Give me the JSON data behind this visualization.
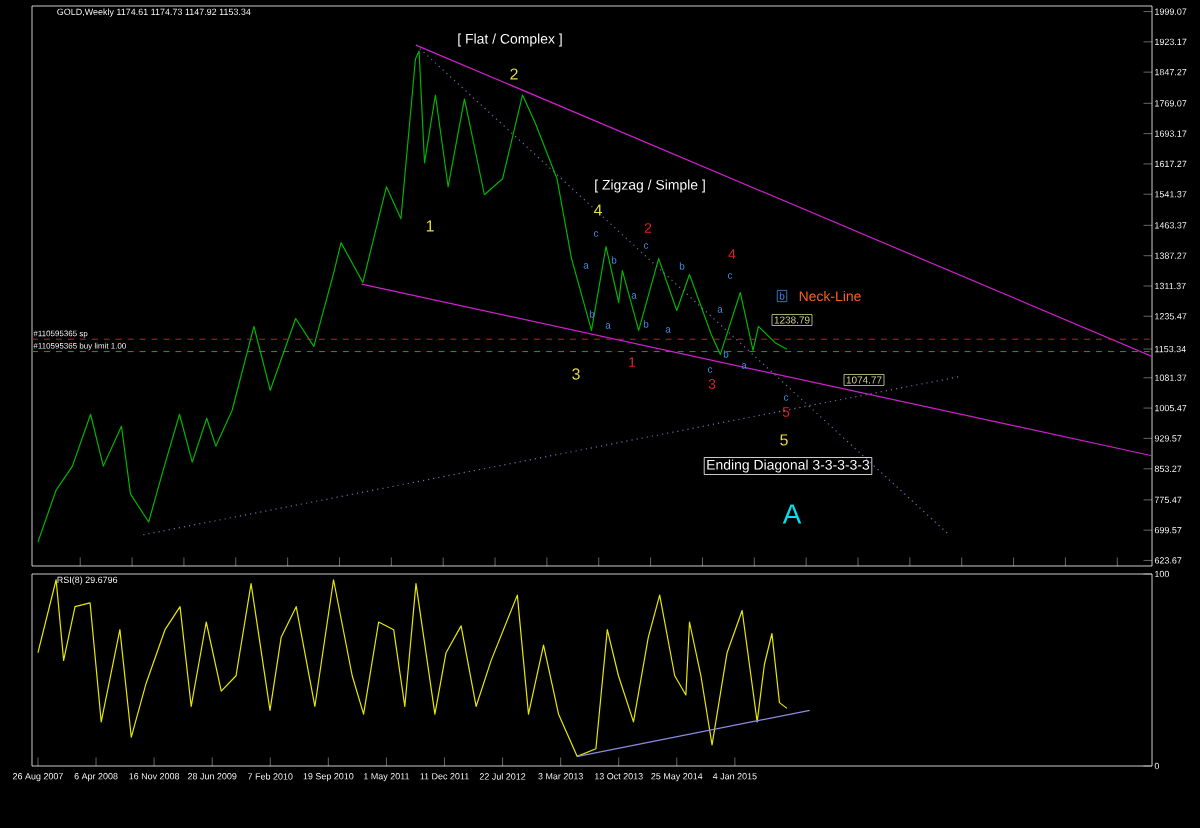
{
  "chart_data": [
    {
      "type": "line",
      "title": "GOLD,Weekly  1174.61 1174.73 1147.92 1153.34",
      "xlim": [
        "2007-08-03",
        "2019-06-01"
      ],
      "ylim": [
        609.73,
        2013.0
      ],
      "yticks": [
        {
          "value": 1999.07,
          "label": "1999.07"
        },
        {
          "value": 1923.17,
          "label": "1923.17"
        },
        {
          "value": 1847.27,
          "label": "1847.27"
        },
        {
          "value": 1769.07,
          "label": "1769.07"
        },
        {
          "value": 1693.17,
          "label": "1693.17"
        },
        {
          "value": 1617.27,
          "label": "1617.27"
        },
        {
          "value": 1541.37,
          "label": "1541.37"
        },
        {
          "value": 1463.37,
          "label": "1463.37"
        },
        {
          "value": 1387.27,
          "label": "1387.27"
        },
        {
          "value": 1311.37,
          "label": "1311.37"
        },
        {
          "value": 1235.47,
          "label": "1235.47"
        },
        {
          "value": 1153.34,
          "label": "1153.34"
        },
        {
          "value": 1081.37,
          "label": "1081.37"
        },
        {
          "value": 1005.47,
          "label": "1005.47"
        },
        {
          "value": 929.57,
          "label": "929.57"
        },
        {
          "value": 853.27,
          "label": "853.27"
        },
        {
          "value": 775.47,
          "label": "775.47"
        },
        {
          "value": 699.57,
          "label": "699.57"
        },
        {
          "value": 623.67,
          "label": "623.67"
        }
      ],
      "tick_labels": "y",
      "series": [
        {
          "color": "#00b400",
          "x": [
            "2007-08-26",
            "2007-11-04",
            "2008-01-06",
            "2008-03-16",
            "2008-05-04",
            "2008-07-13",
            "2008-08-17",
            "2008-10-26",
            "2008-12-21",
            "2009-02-22",
            "2009-04-12",
            "2009-06-07",
            "2009-07-12",
            "2009-09-13",
            "2009-12-06",
            "2010-02-07",
            "2010-05-16",
            "2010-07-25",
            "2010-10-10",
            "2010-11-07",
            "2011-01-30",
            "2011-05-01",
            "2011-06-26",
            "2011-08-21",
            "2011-09-04",
            "2011-09-25",
            "2011-11-06",
            "2011-12-25",
            "2012-02-26",
            "2012-05-13",
            "2012-07-22",
            "2012-10-07",
            "2012-11-25",
            "2013-02-17",
            "2013-04-14",
            "2013-06-30",
            "2013-08-25",
            "2013-10-13",
            "2013-10-27",
            "2013-12-29",
            "2014-03-16",
            "2014-05-25",
            "2014-07-13",
            "2014-10-05",
            "2014-11-09",
            "2015-01-25",
            "2015-03-15",
            "2015-04-05",
            "2015-06-07",
            "2015-07-24"
          ],
          "values": [
            670,
            800,
            860,
            990,
            860,
            960,
            790,
            720,
            850,
            990,
            870,
            980,
            910,
            1000,
            1210,
            1050,
            1230,
            1160,
            1345,
            1420,
            1320,
            1560,
            1480,
            1880,
            1900,
            1620,
            1790,
            1560,
            1780,
            1540,
            1580,
            1790,
            1720,
            1580,
            1380,
            1200,
            1410,
            1270,
            1350,
            1200,
            1380,
            1250,
            1340,
            1190,
            1140,
            1295,
            1150,
            1210,
            1170,
            1153
          ]
        },
        {
          "color": "#d020d0",
          "x": [
            "2011-08-23",
            "2019-06-01"
          ],
          "values": [
            1915,
            1135
          ]
        },
        {
          "color": "#d020d0",
          "x": [
            "2011-01-25",
            "2019-06-01"
          ],
          "values": [
            1316,
            886
          ]
        },
        {
          "color": "#7070b0",
          "line_style": "dotted",
          "x": [
            "2011-08-23",
            "2017-04-09"
          ],
          "values": [
            1915,
            688
          ]
        },
        {
          "color": "#7070b0",
          "line_style": "dotted",
          "x": [
            "2008-10-05",
            "2017-05-17"
          ],
          "values": [
            688,
            1084
          ]
        }
      ],
      "ref_lines": [
        {
          "axis": "y",
          "value": 1178,
          "label": "#110595365 sp",
          "color": "#c02020",
          "line_style": "dashed"
        },
        {
          "axis": "y",
          "value": 1147,
          "label": "#110595365 buy limit 1.00",
          "color": "#20a020",
          "line_style": "dashed"
        }
      ],
      "annotations": [
        "[ Flat / Complex ]",
        "2",
        "1",
        "[ Zigzag / Simple ]",
        "4",
        "3",
        "5",
        "1",
        "2",
        "3",
        "4",
        "5",
        "c",
        "a",
        "b",
        "b",
        "a",
        "c",
        "a",
        "b",
        "a",
        "b",
        "c",
        "a",
        "b",
        "c",
        "a",
        "b",
        "c",
        "Neck-Line",
        "1238.79",
        "1074.77",
        "Ending Diagonal 3-3-3-3-3",
        "A"
      ]
    },
    {
      "type": "line",
      "title": "RSI(8) 29.6796",
      "xlim": [
        "2007-08-03",
        "2019-06-01"
      ],
      "xticks": [
        {
          "value": "2007-08-26",
          "label": "26 Aug 2007"
        },
        {
          "value": "2008-04-06",
          "label": "6 Apr 2008"
        },
        {
          "value": "2008-11-16",
          "label": "16 Nov 2008"
        },
        {
          "value": "2009-06-28",
          "label": "28 Jun 2009"
        },
        {
          "value": "2010-02-07",
          "label": "7 Feb 2010"
        },
        {
          "value": "2010-09-19",
          "label": "19 Sep 2010"
        },
        {
          "value": "2011-05-01",
          "label": "1 May 2011"
        },
        {
          "value": "2011-12-11",
          "label": "11 Dec 2011"
        },
        {
          "value": "2012-07-22",
          "label": "22 Jul 2012"
        },
        {
          "value": "2013-03-03",
          "label": "3 Mar 2013"
        },
        {
          "value": "2013-10-13",
          "label": "13 Oct 2013"
        },
        {
          "value": "2014-05-25",
          "label": "25 May 2014"
        },
        {
          "value": "2015-01-04",
          "label": "4 Jan 2015"
        }
      ],
      "ylim": [
        0,
        100
      ],
      "yticks": [
        0,
        100
      ],
      "series": [
        {
          "color": "#e8e800",
          "x": [
            "2007-08-26",
            "2007-11-04",
            "2007-12-03",
            "2008-01-16",
            "2008-03-14",
            "2008-04-26",
            "2008-07-07",
            "2008-08-20",
            "2008-10-16",
            "2008-12-28",
            "2009-02-24",
            "2009-04-08",
            "2009-06-05",
            "2009-08-02",
            "2009-09-28",
            "2009-11-25",
            "2010-02-06",
            "2010-03-21",
            "2010-05-18",
            "2010-07-29",
            "2010-10-09",
            "2010-12-20",
            "2011-02-02",
            "2011-04-01",
            "2011-05-29",
            "2011-07-11",
            "2011-08-23",
            "2011-11-04",
            "2011-12-17",
            "2012-02-13",
            "2012-04-11",
            "2012-06-08",
            "2012-09-17",
            "2012-10-30",
            "2012-12-27",
            "2013-02-23",
            "2013-05-06",
            "2013-07-17",
            "2013-08-30",
            "2013-10-12",
            "2013-12-09",
            "2014-02-04",
            "2014-03-20",
            "2014-05-17",
            "2014-06-29",
            "2014-07-13",
            "2014-08-26",
            "2014-10-08",
            "2014-12-05",
            "2015-02-01",
            "2015-03-31",
            "2015-04-28",
            "2015-05-27",
            "2015-06-25",
            "2015-07-24"
          ],
          "values": [
            59,
            97,
            55,
            83,
            85,
            23,
            71,
            15,
            43,
            71,
            83,
            31,
            75,
            39,
            47,
            95,
            29,
            67,
            83,
            31,
            97,
            47,
            27,
            75,
            71,
            31,
            95,
            27,
            59,
            73,
            31,
            55,
            89,
            27,
            63,
            27,
            5,
            9,
            71,
            47,
            23,
            67,
            89,
            47,
            37,
            75,
            47,
            11,
            59,
            81,
            23,
            53,
            69,
            33,
            30
          ]
        },
        {
          "color": "#8c8ce6",
          "x": [
            "2013-05-08",
            "2015-10-20"
          ],
          "values": [
            5,
            29
          ]
        }
      ]
    }
  ]
}
